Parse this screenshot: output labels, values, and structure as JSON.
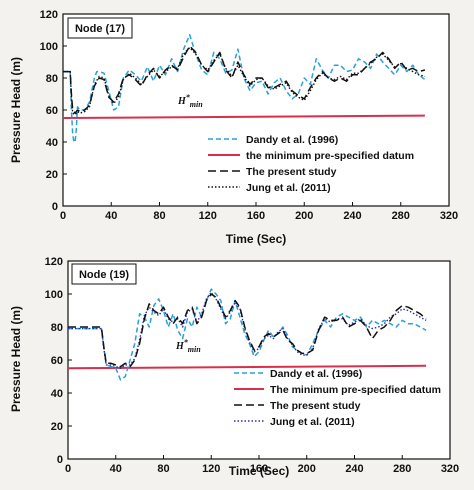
{
  "colors": {
    "dandy": "#2aa0d8",
    "minimum": "#d8304a",
    "present": "#111111",
    "jung": "#2b2fa8"
  },
  "chart_data": [
    {
      "type": "line",
      "node_label": "Node (17)",
      "annotation": {
        "base": "H",
        "sup": "*",
        "sub": "min"
      },
      "xlabel": "Time (Sec)",
      "ylabel": "Pressure Head (m)",
      "xlim": [
        0,
        320
      ],
      "ylim": [
        0,
        120
      ],
      "xticks": [
        "0",
        "40",
        "80",
        "120",
        "160",
        "200",
        "240",
        "280",
        "320"
      ],
      "yticks": [
        "0",
        "20",
        "40",
        "60",
        "80",
        "100",
        "120"
      ],
      "series": [
        {
          "name": "Dandy et al. (1996)",
          "style": "dashed",
          "color_key": "dandy",
          "x": [
            0,
            6,
            7,
            8,
            9,
            10,
            11,
            12,
            14,
            18,
            22,
            26,
            28,
            30,
            34,
            38,
            42,
            46,
            50,
            55,
            60,
            65,
            70,
            75,
            80,
            85,
            90,
            95,
            100,
            105,
            110,
            115,
            120,
            125,
            130,
            135,
            140,
            145,
            150,
            155,
            160,
            165,
            170,
            175,
            180,
            185,
            190,
            195,
            200,
            205,
            210,
            215,
            220,
            225,
            230,
            235,
            240,
            245,
            250,
            255,
            260,
            265,
            270,
            275,
            280,
            285,
            290,
            295,
            300
          ],
          "y": [
            84,
            84,
            60,
            45,
            40,
            40,
            48,
            62,
            60,
            60,
            65,
            80,
            84,
            84,
            83,
            72,
            60,
            62,
            80,
            85,
            82,
            78,
            87,
            78,
            88,
            82,
            92,
            84,
            98,
            107,
            95,
            85,
            82,
            96,
            92,
            83,
            85,
            98,
            80,
            72,
            77,
            78,
            70,
            77,
            80,
            72,
            67,
            70,
            80,
            76,
            92,
            85,
            80,
            88,
            88,
            84,
            85,
            92,
            90,
            86,
            95,
            90,
            86,
            82,
            88,
            84,
            88,
            82,
            79
          ]
        },
        {
          "name": "the minimum  pre-specified datum",
          "style": "solid",
          "color_key": "minimum",
          "x": [
            0,
            300
          ],
          "y": [
            55,
            56.5
          ]
        },
        {
          "name": "The present study",
          "style": "longdash",
          "color_key": "present",
          "x": [
            0,
            6,
            7,
            8,
            10,
            12,
            14,
            18,
            22,
            26,
            30,
            34,
            38,
            42,
            46,
            50,
            55,
            60,
            65,
            70,
            75,
            80,
            85,
            90,
            95,
            100,
            105,
            110,
            115,
            120,
            125,
            130,
            135,
            140,
            145,
            150,
            155,
            160,
            165,
            170,
            175,
            180,
            185,
            190,
            195,
            200,
            205,
            210,
            215,
            220,
            225,
            230,
            235,
            240,
            245,
            250,
            255,
            260,
            265,
            270,
            275,
            280,
            285,
            290,
            295,
            300
          ],
          "y": [
            84,
            84,
            70,
            60,
            58,
            60,
            59,
            60,
            63,
            75,
            80,
            79,
            68,
            65,
            70,
            80,
            82,
            79,
            75,
            82,
            86,
            80,
            85,
            88,
            85,
            93,
            100,
            96,
            88,
            84,
            90,
            96,
            85,
            80,
            90,
            82,
            76,
            80,
            80,
            74,
            74,
            76,
            78,
            72,
            69,
            67,
            74,
            80,
            84,
            80,
            78,
            80,
            78,
            82,
            82,
            86,
            90,
            92,
            96,
            92,
            86,
            90,
            85,
            86,
            84,
            85
          ]
        },
        {
          "name": "Jung et al. (2011)",
          "style": "dotted",
          "color_key": "present",
          "x": [
            0,
            6,
            7,
            8,
            10,
            12,
            14,
            18,
            22,
            26,
            30,
            34,
            38,
            42,
            46,
            50,
            55,
            60,
            65,
            70,
            75,
            80,
            85,
            90,
            95,
            100,
            105,
            110,
            115,
            120,
            125,
            130,
            135,
            140,
            145,
            150,
            155,
            160,
            165,
            170,
            175,
            180,
            185,
            190,
            195,
            200,
            205,
            210,
            215,
            220,
            225,
            230,
            235,
            240,
            245,
            250,
            255,
            260,
            265,
            270,
            275,
            280,
            285,
            290,
            295,
            300
          ],
          "y": [
            84,
            84,
            68,
            58,
            57,
            59,
            58,
            59,
            62,
            76,
            81,
            80,
            69,
            64,
            68,
            79,
            83,
            80,
            76,
            81,
            85,
            81,
            84,
            87,
            86,
            95,
            99,
            95,
            88,
            85,
            91,
            95,
            86,
            81,
            88,
            81,
            75,
            79,
            80,
            75,
            73,
            75,
            77,
            71,
            68,
            66,
            72,
            79,
            83,
            80,
            79,
            81,
            79,
            83,
            83,
            86,
            89,
            93,
            95,
            91,
            87,
            89,
            86,
            84,
            82,
            81
          ]
        }
      ]
    },
    {
      "type": "line",
      "node_label": "Node (19)",
      "annotation": {
        "base": "H",
        "sup": "*",
        "sub": "min"
      },
      "xlabel": "Time (Sec)",
      "ylabel": "Pressure Head (m)",
      "xlim": [
        0,
        320
      ],
      "ylim": [
        0,
        120
      ],
      "xticks": [
        "0",
        "40",
        "80",
        "120",
        "160",
        "200",
        "240",
        "280",
        "320"
      ],
      "yticks": [
        "0",
        "20",
        "40",
        "60",
        "80",
        "100",
        "120"
      ],
      "series": [
        {
          "name": "Dandy et al. (1996)",
          "style": "dashed",
          "color_key": "dandy",
          "x": [
            0,
            28,
            30,
            32,
            36,
            40,
            44,
            48,
            52,
            56,
            60,
            64,
            68,
            72,
            76,
            80,
            84,
            88,
            92,
            96,
            100,
            104,
            108,
            112,
            116,
            120,
            124,
            128,
            132,
            136,
            140,
            144,
            148,
            152,
            156,
            160,
            164,
            168,
            172,
            176,
            180,
            184,
            188,
            192,
            196,
            200,
            205,
            210,
            215,
            220,
            225,
            230,
            235,
            240,
            245,
            250,
            255,
            260,
            265,
            270,
            275,
            280,
            285,
            290,
            295,
            300
          ],
          "y": [
            79,
            79,
            68,
            57,
            56,
            55,
            48,
            50,
            60,
            70,
            88,
            86,
            80,
            93,
            97,
            90,
            80,
            88,
            78,
            73,
            85,
            80,
            92,
            86,
            96,
            103,
            100,
            96,
            82,
            85,
            96,
            86,
            76,
            70,
            62,
            65,
            72,
            78,
            74,
            76,
            80,
            75,
            68,
            66,
            64,
            63,
            70,
            78,
            84,
            80,
            86,
            88,
            86,
            84,
            86,
            80,
            84,
            82,
            84,
            82,
            80,
            84,
            82,
            82,
            80,
            78
          ]
        },
        {
          "name": "The minimum  pre-specified datum",
          "style": "solid",
          "color_key": "minimum",
          "x": [
            0,
            300
          ],
          "y": [
            55,
            56.5
          ]
        },
        {
          "name": "The present study",
          "style": "longdash",
          "color_key": "present",
          "x": [
            0,
            28,
            30,
            32,
            36,
            40,
            44,
            48,
            52,
            56,
            60,
            64,
            68,
            72,
            76,
            80,
            84,
            88,
            92,
            96,
            100,
            104,
            108,
            112,
            116,
            120,
            124,
            128,
            132,
            136,
            140,
            144,
            148,
            152,
            156,
            160,
            164,
            168,
            172,
            176,
            180,
            184,
            188,
            192,
            196,
            200,
            205,
            210,
            215,
            220,
            225,
            230,
            235,
            240,
            245,
            250,
            255,
            260,
            265,
            270,
            275,
            280,
            285,
            290,
            295,
            300
          ],
          "y": [
            80,
            80,
            68,
            58,
            58,
            57,
            56,
            58,
            56,
            60,
            70,
            85,
            94,
            90,
            88,
            92,
            86,
            82,
            86,
            82,
            90,
            92,
            82,
            86,
            96,
            100,
            98,
            92,
            86,
            90,
            96,
            92,
            80,
            72,
            66,
            68,
            74,
            76,
            74,
            76,
            78,
            72,
            70,
            66,
            64,
            64,
            66,
            78,
            86,
            84,
            84,
            86,
            80,
            82,
            84,
            80,
            73,
            78,
            80,
            84,
            90,
            93,
            92,
            90,
            88,
            85
          ]
        },
        {
          "name": "Jung et al. (2011)",
          "style": "dotted",
          "color_key": "jung",
          "x": [
            0,
            28,
            30,
            32,
            36,
            40,
            44,
            48,
            52,
            56,
            60,
            64,
            68,
            72,
            76,
            80,
            84,
            88,
            92,
            96,
            100,
            104,
            108,
            112,
            116,
            120,
            124,
            128,
            132,
            136,
            140,
            144,
            148,
            152,
            156,
            160,
            164,
            168,
            172,
            176,
            180,
            184,
            188,
            192,
            196,
            200,
            205,
            210,
            215,
            220,
            225,
            230,
            235,
            240,
            245,
            250,
            255,
            260,
            265,
            270,
            275,
            280,
            285,
            290,
            295,
            300
          ],
          "y": [
            79,
            79,
            67,
            57,
            57,
            56,
            55,
            57,
            57,
            61,
            72,
            87,
            92,
            89,
            87,
            91,
            85,
            83,
            85,
            80,
            89,
            91,
            83,
            88,
            97,
            101,
            97,
            91,
            85,
            89,
            95,
            91,
            79,
            71,
            65,
            67,
            73,
            75,
            73,
            77,
            79,
            73,
            69,
            65,
            63,
            63,
            67,
            79,
            85,
            83,
            85,
            85,
            81,
            83,
            85,
            81,
            79,
            80,
            82,
            86,
            88,
            91,
            90,
            88,
            86,
            84
          ]
        }
      ]
    }
  ]
}
